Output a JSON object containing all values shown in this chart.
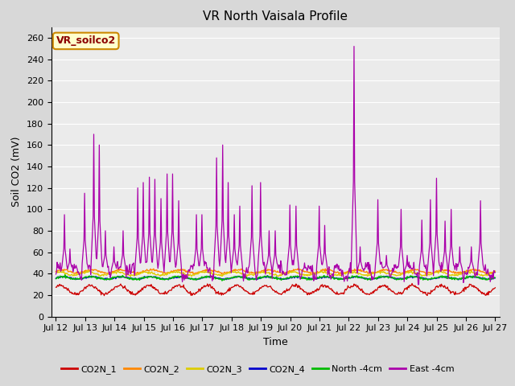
{
  "title": "VR North Vaisala Profile",
  "ylabel": "Soil CO2 (mV)",
  "xlabel": "Time",
  "annotation": "VR_soilco2",
  "ylim": [
    0,
    270
  ],
  "yticks": [
    0,
    20,
    40,
    60,
    80,
    100,
    120,
    140,
    160,
    180,
    200,
    220,
    240,
    260
  ],
  "xstart_day": 12,
  "xend_day": 27,
  "n_points": 720,
  "colors": {
    "CO2N_1": "#cc0000",
    "CO2N_2": "#ff8800",
    "CO2N_3": "#ddcc00",
    "CO2N_4": "#0000cc",
    "North_4cm": "#00bb00",
    "East_4cm": "#aa00aa"
  },
  "legend_labels": [
    "CO2N_1",
    "CO2N_2",
    "CO2N_3",
    "CO2N_4",
    "North -4cm",
    "East -4cm"
  ],
  "legend_colors": [
    "#cc0000",
    "#ff8800",
    "#ddcc00",
    "#0000cc",
    "#00bb00",
    "#aa00aa"
  ],
  "fig_bg": "#d8d8d8",
  "plot_bg": "#ebebeb",
  "grid_color": "#ffffff",
  "title_fontsize": 11,
  "axis_fontsize": 9,
  "tick_fontsize": 8,
  "legend_fontsize": 8
}
